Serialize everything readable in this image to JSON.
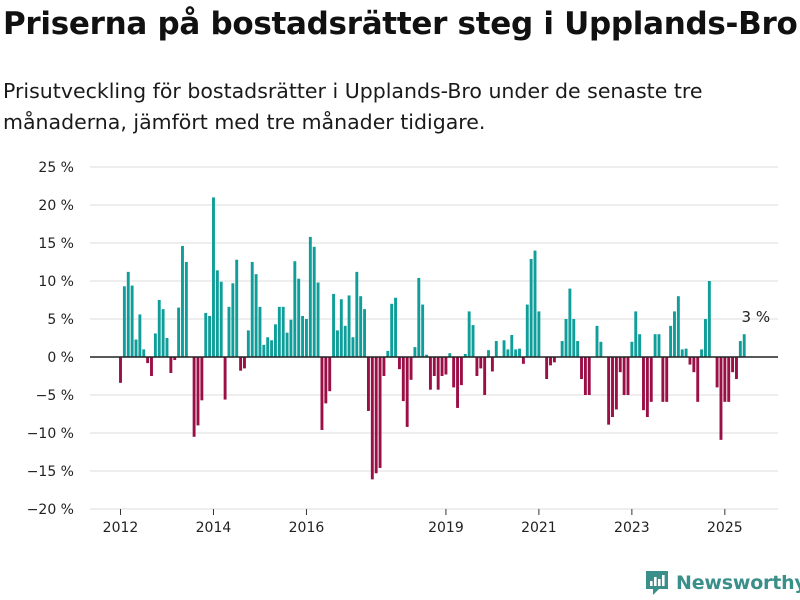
{
  "title": "Priserna på bostadsrätter steg i Upplands-Bro",
  "subtitle": "Prisutveckling för bostadsrätter i Upplands-Bro under de senaste tre månaderna, jämfört med tre månader tidigare.",
  "brand": {
    "name": "Newsworthy",
    "icon": "newsworthy-logo-icon"
  },
  "colors": {
    "positive": "#0f9e99",
    "negative": "#9b0f47",
    "grid": "#dedede",
    "zero": "#222222"
  },
  "chart_data": {
    "type": "bar",
    "title": "Priserna på bostadsrätter steg i Upplands-Bro",
    "ylim": [
      -20,
      25
    ],
    "yticks": [
      25,
      20,
      15,
      10,
      5,
      0,
      -5,
      -10,
      -15,
      -20
    ],
    "ytick_labels": [
      "25 %",
      "20 %",
      "15 %",
      "10 %",
      "5 %",
      "0 %",
      "−5 %",
      "−10 %",
      "−15 %",
      "−20 %"
    ],
    "xlim": [
      "2011-10",
      "2026-07"
    ],
    "xticks": [
      "2012",
      "2014",
      "2016",
      "2019",
      "2021",
      "2023",
      "2025"
    ],
    "grid": true,
    "annotation": {
      "label": "3 %",
      "x": "2025-09"
    },
    "series": [
      {
        "x_start": "2012-01",
        "frequency": "monthly",
        "values": [
          -3.4,
          9.3,
          11.2,
          9.4,
          2.3,
          5.6,
          1.0,
          -0.8,
          -2.5,
          3.1,
          7.5,
          6.3,
          2.5,
          -2.1,
          -0.4,
          6.5,
          14.6,
          12.5,
          0.0,
          -10.5,
          -9.0,
          -5.7,
          5.8,
          5.4,
          21.0,
          11.4,
          9.9,
          -5.6,
          6.6,
          9.7,
          12.8,
          -1.8,
          -1.5,
          3.5,
          12.5,
          10.9,
          6.6,
          1.6,
          2.6,
          2.2,
          4.3,
          6.6,
          6.6,
          3.2,
          4.9,
          12.6,
          10.3,
          5.4,
          5.0,
          15.8,
          14.5,
          9.8,
          -9.6,
          -6.1,
          -4.5,
          8.3,
          3.5,
          7.6,
          4.1,
          8.1,
          2.6,
          11.2,
          8.0,
          6.3,
          -7.1,
          -16.1,
          -15.3,
          -14.6,
          -2.5,
          0.8,
          7.0,
          7.8,
          -1.6,
          -5.8,
          -9.2,
          -3.0,
          1.3,
          10.4,
          6.9,
          0.3,
          -4.3,
          -2.5,
          -4.3,
          -2.5,
          -2.3,
          0.5,
          -4.0,
          -6.7,
          -3.7,
          0.4,
          6.0,
          4.2,
          -2.5,
          -1.5,
          -5.0,
          0.9,
          -1.9,
          2.1,
          0.1,
          2.2,
          1.0,
          2.9,
          1.0,
          1.1,
          -0.9,
          6.9,
          12.9,
          14.0,
          6.0,
          0.0,
          -2.9,
          -1.1,
          -0.7,
          0.0,
          2.1,
          5.0,
          9.0,
          5.0,
          2.1,
          -2.9,
          -5.0,
          -5.0,
          0.0,
          4.1,
          2.0,
          0.0,
          -8.9,
          -7.9,
          -6.9,
          -2.0,
          -5.0,
          -5.0,
          2.0,
          6.0,
          3.0,
          -7.0,
          -7.9,
          -5.9,
          3.0,
          3.0,
          -5.9,
          -5.9,
          4.1,
          6.0,
          8.0,
          1.0,
          1.1,
          -1.0,
          -2.0,
          -5.9,
          1.0,
          5.0,
          10.0,
          0.0,
          -4.0,
          -10.9,
          -5.9,
          -5.9,
          -2.0,
          -2.9,
          2.1,
          3.0
        ]
      }
    ]
  }
}
